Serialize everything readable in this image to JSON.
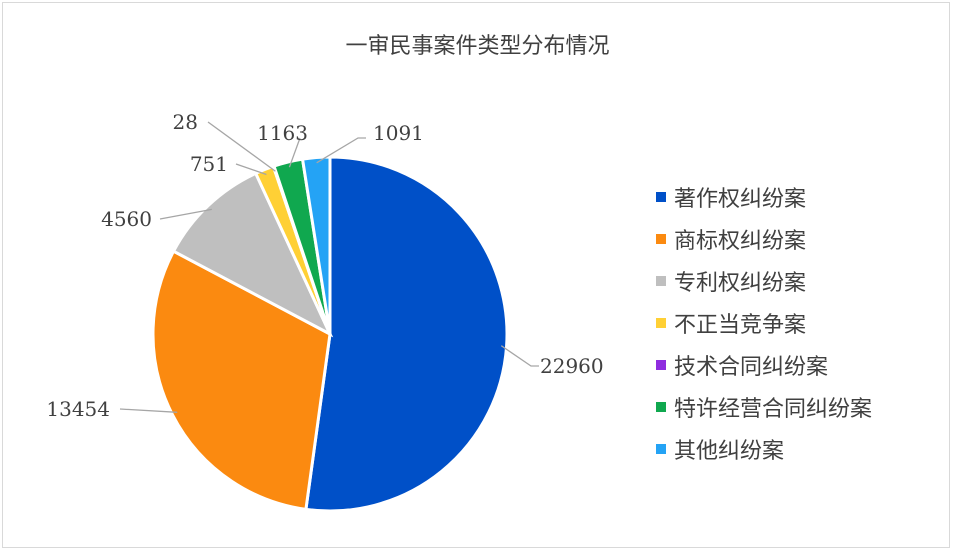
{
  "chart_data": {
    "type": "pie",
    "title": "一审民事案件类型分布情况",
    "categories": [
      "著作权纠纷案",
      "商标权纠纷案",
      "专利权纠纷案",
      "不正当竞争案",
      "技术合同纠纷案",
      "特许经营合同纠纷案",
      "其他纠纷案"
    ],
    "values": [
      22960,
      13454,
      4560,
      751,
      28,
      1163,
      1091
    ],
    "data_labels": [
      "22960",
      "13454",
      "4560",
      "751",
      "28",
      "1163",
      "1091"
    ],
    "colors": [
      "#0050c8",
      "#fb8a10",
      "#bfbfbf",
      "#ffd035",
      "#8f2ddf",
      "#10a84f",
      "#24a3f5"
    ],
    "legend_position": "right"
  }
}
